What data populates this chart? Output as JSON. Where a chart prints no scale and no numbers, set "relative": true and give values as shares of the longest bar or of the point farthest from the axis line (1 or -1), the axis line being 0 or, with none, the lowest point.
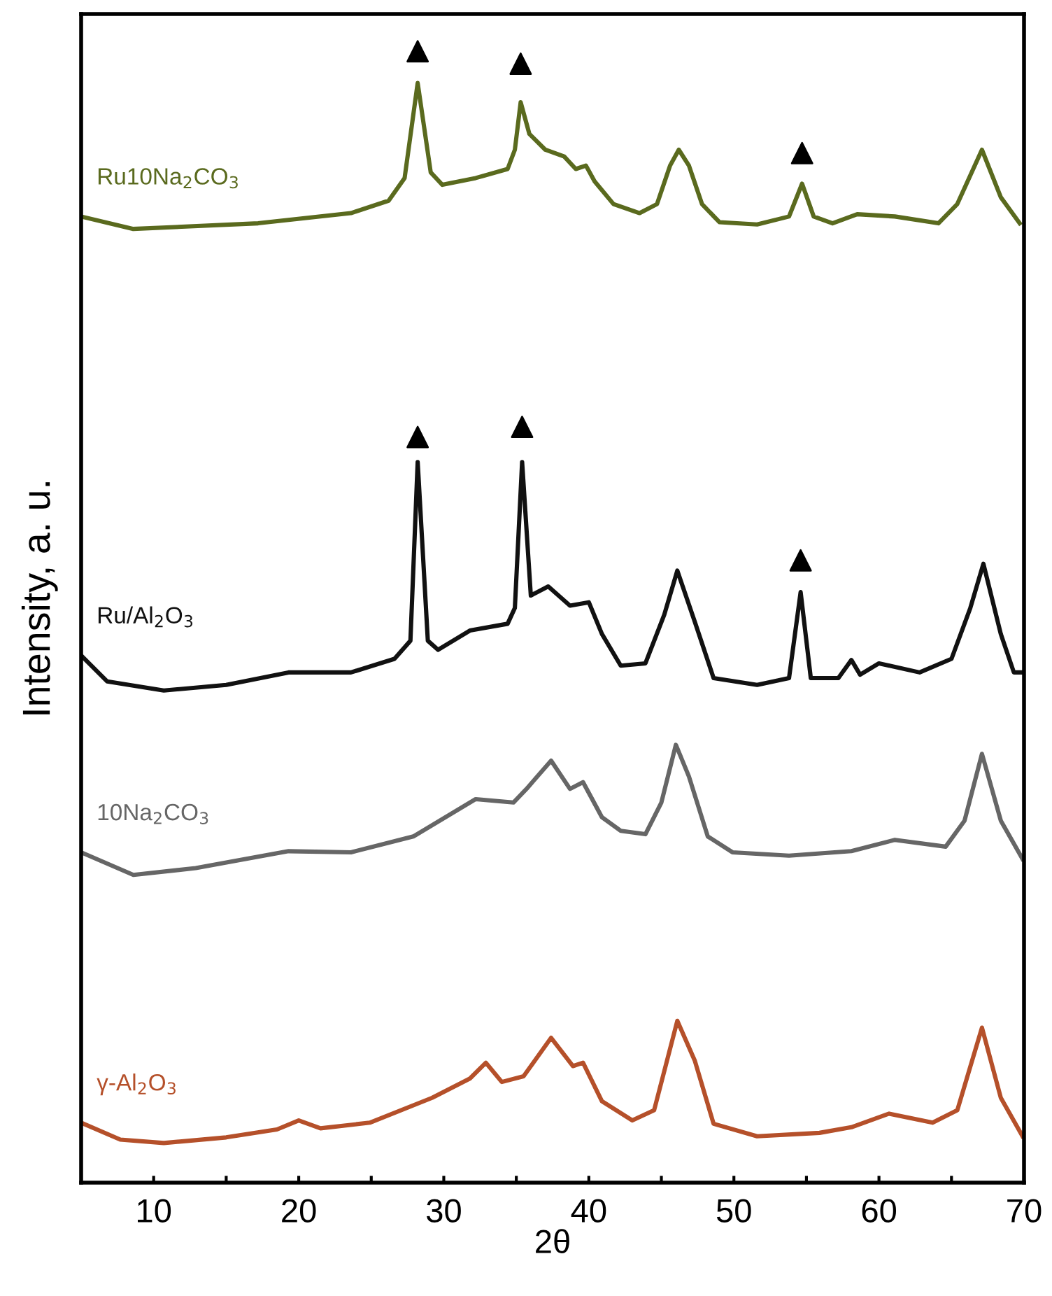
{
  "chart_data": {
    "type": "line",
    "relative": true,
    "xlabel": "2θ",
    "ylabel": "Intensity, a. u.",
    "xlim": [
      5,
      70
    ],
    "xticks": [
      10,
      {
        "value": 15,
        "label": null
      },
      20,
      {
        "value": 25,
        "label": null
      },
      30,
      {
        "value": 35,
        "label": null
      },
      40,
      {
        "value": 45,
        "label": null
      },
      50,
      {
        "value": 55,
        "label": null
      },
      60,
      {
        "value": 65,
        "label": null
      },
      70
    ],
    "tick_labels": "x",
    "grid": false,
    "legend": false,
    "marker": "none",
    "line_style": "solid",
    "series": [
      {
        "name": "Ru10Na$_{2}$CO$_{3}$",
        "color": "#5a6a1e",
        "x": [
          5,
          8.6,
          17.2,
          23.6,
          26.2,
          27.3,
          28.2,
          29.1,
          29.9,
          32.2,
          34.4,
          34.9,
          35.3,
          35.9,
          37.0,
          38.3,
          39.1,
          39.8,
          40.4,
          41.7,
          43.5,
          44.7,
          45.6,
          46.2,
          46.9,
          47.8,
          49.0,
          51.6,
          53.8,
          54.7,
          55.5,
          56.8,
          58.5,
          61.1,
          64.1,
          65.4,
          67.1,
          68.4,
          69.7
        ],
        "values": [
          0.854,
          0.843,
          0.848,
          0.857,
          0.868,
          0.888,
          0.972,
          0.893,
          0.882,
          0.888,
          0.896,
          0.913,
          0.955,
          0.927,
          0.913,
          0.907,
          0.896,
          0.899,
          0.885,
          0.865,
          0.857,
          0.865,
          0.899,
          0.913,
          0.899,
          0.865,
          0.849,
          0.847,
          0.854,
          0.883,
          0.854,
          0.848,
          0.856,
          0.854,
          0.848,
          0.865,
          0.913,
          0.871,
          0.848
        ]
      },
      {
        "name": "Ru/Al$_{2}$O$_{3}$",
        "color": "#111111",
        "x": [
          5,
          6.8,
          10.7,
          15.0,
          19.3,
          23.6,
          26.6,
          27.7,
          28.2,
          28.9,
          29.6,
          31.8,
          34.4,
          34.9,
          35.4,
          36.0,
          37.2,
          38.7,
          40.0,
          40.9,
          42.2,
          43.9,
          45.2,
          46.1,
          47.3,
          48.6,
          51.6,
          53.8,
          54.6,
          55.3,
          57.2,
          58.1,
          58.7,
          60.0,
          62.8,
          65.0,
          66.3,
          67.2,
          68.4,
          69.3,
          69.9
        ],
        "values": [
          0.466,
          0.443,
          0.435,
          0.44,
          0.451,
          0.451,
          0.463,
          0.479,
          0.637,
          0.479,
          0.471,
          0.488,
          0.494,
          0.508,
          0.637,
          0.519,
          0.527,
          0.51,
          0.513,
          0.485,
          0.457,
          0.459,
          0.502,
          0.541,
          0.496,
          0.446,
          0.44,
          0.446,
          0.522,
          0.446,
          0.446,
          0.462,
          0.449,
          0.459,
          0.451,
          0.463,
          0.508,
          0.547,
          0.485,
          0.451,
          0.451
        ]
      },
      {
        "name": "10Na$_{2}$CO$_{3}$",
        "color": "#666666",
        "x": [
          5,
          8.6,
          12.9,
          19.3,
          23.6,
          27.9,
          32.2,
          34.8,
          35.7,
          37.4,
          38.7,
          39.6,
          40.9,
          42.2,
          43.9,
          45.0,
          46.0,
          46.9,
          48.2,
          49.9,
          53.8,
          58.1,
          61.1,
          64.6,
          65.9,
          67.1,
          68.4,
          69.9
        ],
        "values": [
          0.292,
          0.272,
          0.278,
          0.293,
          0.292,
          0.306,
          0.339,
          0.336,
          0.348,
          0.373,
          0.348,
          0.354,
          0.323,
          0.311,
          0.308,
          0.336,
          0.387,
          0.359,
          0.306,
          0.292,
          0.289,
          0.293,
          0.303,
          0.297,
          0.32,
          0.379,
          0.32,
          0.286
        ]
      },
      {
        "name": "γ-Al$_{2}$O$_{3}$",
        "color": "#b5502a",
        "x": [
          5,
          7.7,
          10.7,
          15.0,
          18.5,
          20.0,
          21.5,
          24.9,
          29.2,
          31.8,
          32.9,
          34.0,
          35.5,
          37.4,
          38.9,
          39.6,
          40.9,
          43.0,
          44.5,
          46.1,
          47.3,
          48.6,
          51.6,
          55.9,
          58.1,
          60.7,
          63.7,
          65.4,
          67.1,
          68.4,
          69.9
        ],
        "values": [
          0.053,
          0.038,
          0.035,
          0.04,
          0.047,
          0.055,
          0.048,
          0.053,
          0.075,
          0.092,
          0.106,
          0.089,
          0.094,
          0.128,
          0.103,
          0.106,
          0.072,
          0.055,
          0.064,
          0.143,
          0.108,
          0.052,
          0.041,
          0.044,
          0.049,
          0.061,
          0.053,
          0.064,
          0.137,
          0.075,
          0.041
        ]
      },
      {
        "type": "scatter",
        "marker": "triangle",
        "color": "#000000",
        "x": [
          28.2,
          35.3,
          54.7,
          28.2,
          35.4,
          54.6
        ],
        "values": [
          1.0,
          0.989,
          0.91,
          0.659,
          0.668,
          0.55
        ]
      }
    ]
  }
}
